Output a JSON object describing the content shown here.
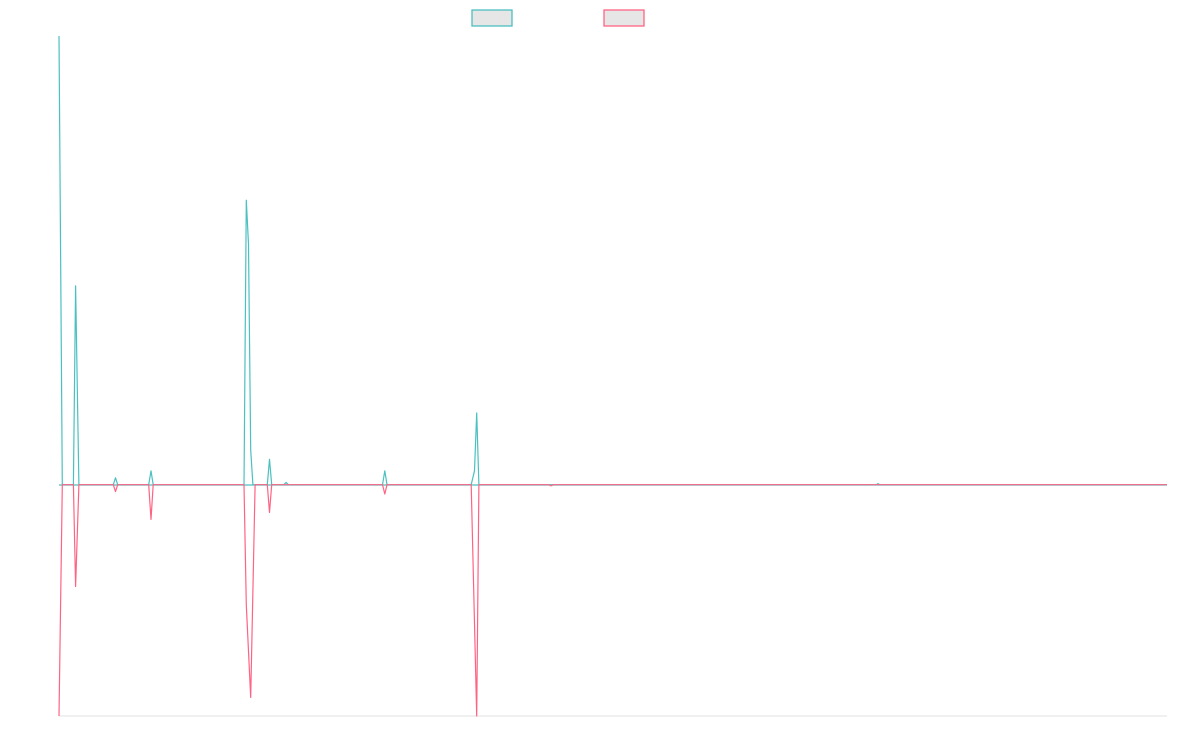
{
  "chart_data": {
    "type": "line",
    "title": "",
    "xlabel": "",
    "ylabel": "",
    "legend_placement": "top-center",
    "grid": false,
    "xlim": [
      0,
      1000
    ],
    "ylim": [
      -1.0,
      1.94
    ],
    "series": [
      {
        "color": "#4bc0c0",
        "values": [
          [
            0,
            1.94
          ],
          [
            3,
            0
          ],
          [
            13,
            0
          ],
          [
            15,
            0.86
          ],
          [
            18,
            0
          ],
          [
            49,
            0
          ],
          [
            51,
            0.03
          ],
          [
            53,
            0
          ],
          [
            81,
            0
          ],
          [
            83,
            0.06
          ],
          [
            85,
            0
          ],
          [
            167,
            0
          ],
          [
            169,
            1.23
          ],
          [
            171,
            1.04
          ],
          [
            173,
            0.15
          ],
          [
            175,
            0
          ],
          [
            188,
            0
          ],
          [
            190,
            0.11
          ],
          [
            192,
            0
          ],
          [
            203,
            0
          ],
          [
            205,
            0.01
          ],
          [
            207,
            0
          ],
          [
            292,
            0
          ],
          [
            294,
            0.06
          ],
          [
            296,
            0
          ],
          [
            372,
            0
          ],
          [
            375,
            0.06
          ],
          [
            377,
            0.31
          ],
          [
            379,
            0
          ],
          [
            738,
            0
          ],
          [
            739,
            0.005
          ],
          [
            741,
            0
          ],
          [
            1000,
            0
          ]
        ]
      },
      {
        "color": "#ff6384",
        "values": [
          [
            0,
            -1.0
          ],
          [
            3,
            0
          ],
          [
            13,
            0
          ],
          [
            15,
            -0.44
          ],
          [
            18,
            0
          ],
          [
            49,
            0
          ],
          [
            51,
            -0.03
          ],
          [
            53,
            0
          ],
          [
            81,
            0
          ],
          [
            83,
            -0.15
          ],
          [
            85,
            0
          ],
          [
            167,
            0
          ],
          [
            169,
            -0.52
          ],
          [
            173,
            -0.92
          ],
          [
            177,
            0
          ],
          [
            188,
            0
          ],
          [
            190,
            -0.12
          ],
          [
            192,
            0
          ],
          [
            292,
            0
          ],
          [
            294,
            -0.04
          ],
          [
            296,
            0
          ],
          [
            372,
            0
          ],
          [
            377,
            -1.0
          ],
          [
            379,
            0
          ],
          [
            442,
            0
          ],
          [
            444,
            -0.005
          ],
          [
            446,
            0
          ],
          [
            1000,
            0
          ]
        ]
      }
    ],
    "colors": {
      "series_1": "#4bc0c0",
      "series_2": "#ff6384",
      "legend_fill": "#e6e6e6"
    }
  }
}
